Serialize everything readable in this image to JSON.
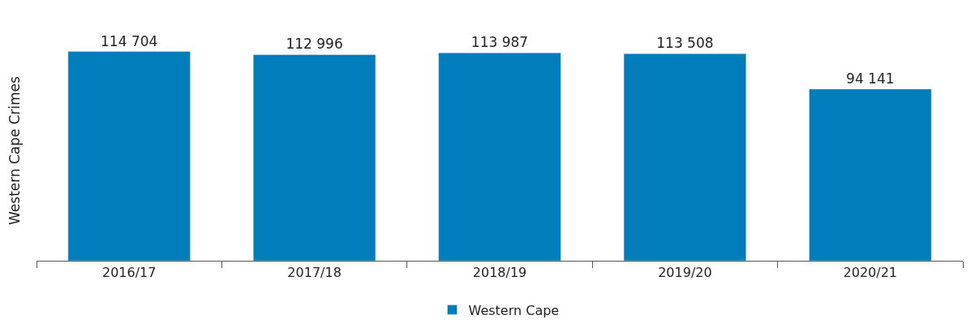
{
  "chart_data": {
    "type": "bar",
    "ylabel": "Western Cape Crimes",
    "categories": [
      "2016/17",
      "2017/18",
      "2018/19",
      "2019/20",
      "2020/21"
    ],
    "series": [
      {
        "name": "Western Cape",
        "color": "#007dba",
        "values": [
          114704,
          112996,
          113987,
          113508,
          94141
        ]
      }
    ],
    "data_labels": true,
    "tick_labels": "x",
    "legend": "bottom"
  }
}
